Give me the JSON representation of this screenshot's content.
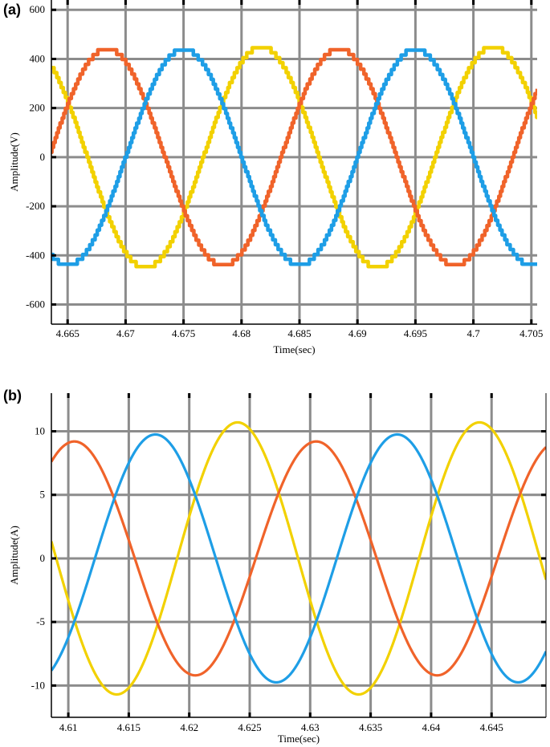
{
  "panels": [
    {
      "label": "(a)",
      "chart_data": {
        "type": "line",
        "xlabel": "Time(sec)",
        "ylabel": "Amplitude(V)",
        "xlim": [
          4.6636,
          4.7055
        ],
        "ylim": [
          -680,
          640
        ],
        "xticks": [
          4.665,
          4.67,
          4.675,
          4.68,
          4.685,
          4.69,
          4.695,
          4.7,
          4.705
        ],
        "xtick_labels": [
          "4.665",
          "4.67",
          "4.675",
          "4.68",
          "4.685",
          "4.69",
          "4.695",
          "4.7",
          "4.705"
        ],
        "yticks": [
          -600,
          -400,
          -200,
          0,
          200,
          400,
          600
        ],
        "ytick_labels": [
          "-600",
          "-400",
          "-200",
          "0",
          "200",
          "400",
          "600"
        ],
        "grid": true,
        "series": [
          {
            "color": "#F2D100",
            "amplitude": 450,
            "period": 0.02,
            "x_peak": 4.6817,
            "step_noise": true
          },
          {
            "color": "#F0632A",
            "amplitude": 442,
            "period": 0.02,
            "x_peak": 4.6684,
            "step_noise": true
          },
          {
            "color": "#1E9EE6",
            "amplitude": 440,
            "period": 0.02,
            "x_peak": 4.675,
            "step_noise": true
          }
        ]
      }
    },
    {
      "label": "(b)",
      "chart_data": {
        "type": "line",
        "xlabel": "Time(sec)",
        "ylabel": "Amplitude(A)",
        "xlim": [
          4.6086,
          4.6495
        ],
        "ylim": [
          -12.5,
          13.0
        ],
        "xticks": [
          4.61,
          4.615,
          4.62,
          4.625,
          4.63,
          4.635,
          4.64,
          4.645
        ],
        "xtick_labels": [
          "4.61",
          "4.615",
          "4.62",
          "4.625",
          "4.63",
          "4.635",
          "4.64",
          "4.645"
        ],
        "yticks": [
          -10,
          -5,
          0,
          5,
          10
        ],
        "ytick_labels": [
          "-10",
          "-5",
          "0",
          "5",
          "10"
        ],
        "grid": true,
        "series": [
          {
            "color": "#F2D100",
            "amplitude": 10.7,
            "period": 0.02,
            "x_peak": 4.624,
            "step_noise": false
          },
          {
            "color": "#F0632A",
            "amplitude": 9.2,
            "period": 0.02,
            "x_peak": 4.6105,
            "step_noise": false
          },
          {
            "color": "#1E9EE6",
            "amplitude": 9.75,
            "period": 0.02,
            "x_peak": 4.6172,
            "step_noise": false
          }
        ]
      }
    }
  ]
}
